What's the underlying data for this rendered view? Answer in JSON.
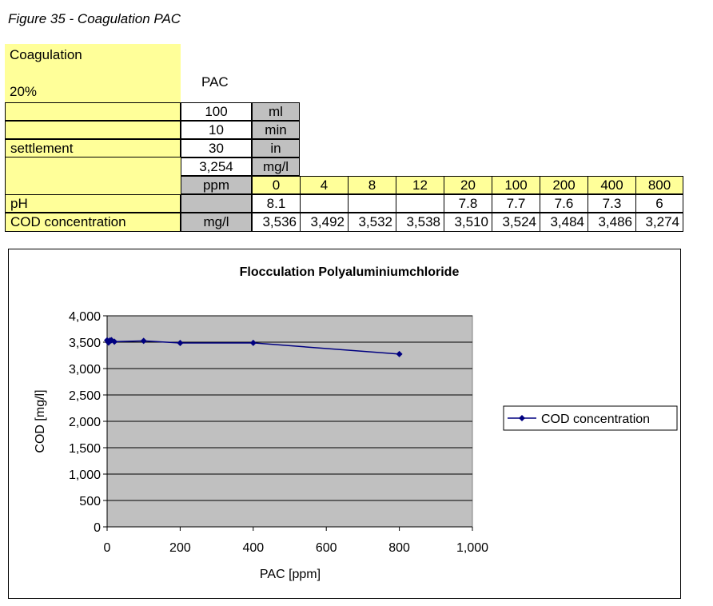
{
  "figure_title": "Figure 35 - Coagulation PAC",
  "params": {
    "coagulation_label": "Coagulation",
    "percent_label": "20%",
    "pac_label": "PAC",
    "settlement_label": "settlement",
    "rows": [
      {
        "value": "100",
        "unit": "ml"
      },
      {
        "value": "10",
        "unit": "min"
      },
      {
        "value": "30",
        "unit": "in"
      },
      {
        "value": "3,254",
        "unit": "mg/l"
      }
    ]
  },
  "table": {
    "ppm_label": "ppm",
    "doses": [
      "0",
      "4",
      "8",
      "12",
      "20",
      "100",
      "200",
      "400",
      "800"
    ],
    "ph_label": "pH",
    "ph_values": [
      "8.1",
      "",
      "",
      "",
      "7.8",
      "7.7",
      "7.6",
      "7.3",
      "6"
    ],
    "cod_label": "COD concentration",
    "cod_unit": "mg/l",
    "cod_values": [
      "3,536",
      "3,492",
      "3,532",
      "3,538",
      "3,510",
      "3,524",
      "3,484",
      "3,486",
      "3,274"
    ]
  },
  "chart_data": {
    "type": "scatter",
    "title": "Flocculation Polyaluminiumchloride",
    "xlabel": "PAC [ppm]",
    "ylabel": "COD [mg/l]",
    "xlim": [
      0,
      1000
    ],
    "ylim": [
      0,
      4000
    ],
    "x_ticks": [
      "0",
      "200",
      "400",
      "600",
      "800",
      "1,000"
    ],
    "y_ticks": [
      "0",
      "500",
      "1,000",
      "1,500",
      "2,000",
      "2,500",
      "3,000",
      "3,500",
      "4,000"
    ],
    "grid": true,
    "legend_position": "right",
    "series": [
      {
        "name": "COD concentration",
        "color": "#000080",
        "x": [
          0,
          4,
          8,
          12,
          20,
          100,
          200,
          400,
          800
        ],
        "y": [
          3536,
          3492,
          3532,
          3538,
          3510,
          3524,
          3484,
          3486,
          3274
        ]
      }
    ],
    "plot_background": "#c0c0c0"
  }
}
